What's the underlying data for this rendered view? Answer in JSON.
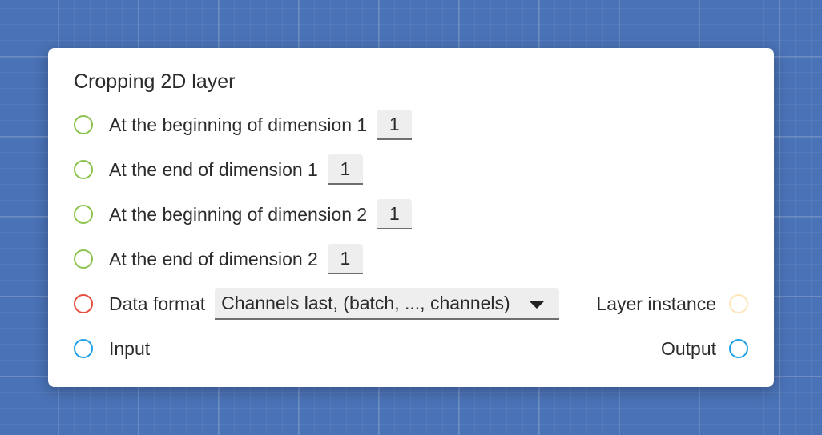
{
  "node": {
    "title": "Cropping 2D layer",
    "params": [
      {
        "label": "At the beginning of dimension 1",
        "value": "1",
        "socket_color": "#8bc34a"
      },
      {
        "label": "At the end of dimension 1",
        "value": "1",
        "socket_color": "#8bc34a"
      },
      {
        "label": "At the beginning of dimension 2",
        "value": "1",
        "socket_color": "#8bc34a"
      },
      {
        "label": "At the end of dimension 2",
        "value": "1",
        "socket_color": "#8bc34a"
      }
    ],
    "data_format": {
      "label": "Data format",
      "selected": "Channels last, (batch, ..., channels)",
      "socket_color": "#e74c3c"
    },
    "layer_instance": {
      "label": "Layer instance",
      "socket_color": "#fde5b8"
    },
    "input": {
      "label": "Input",
      "socket_color": "#1ea0e6"
    },
    "output": {
      "label": "Output",
      "socket_color": "#1ea0e6"
    }
  }
}
